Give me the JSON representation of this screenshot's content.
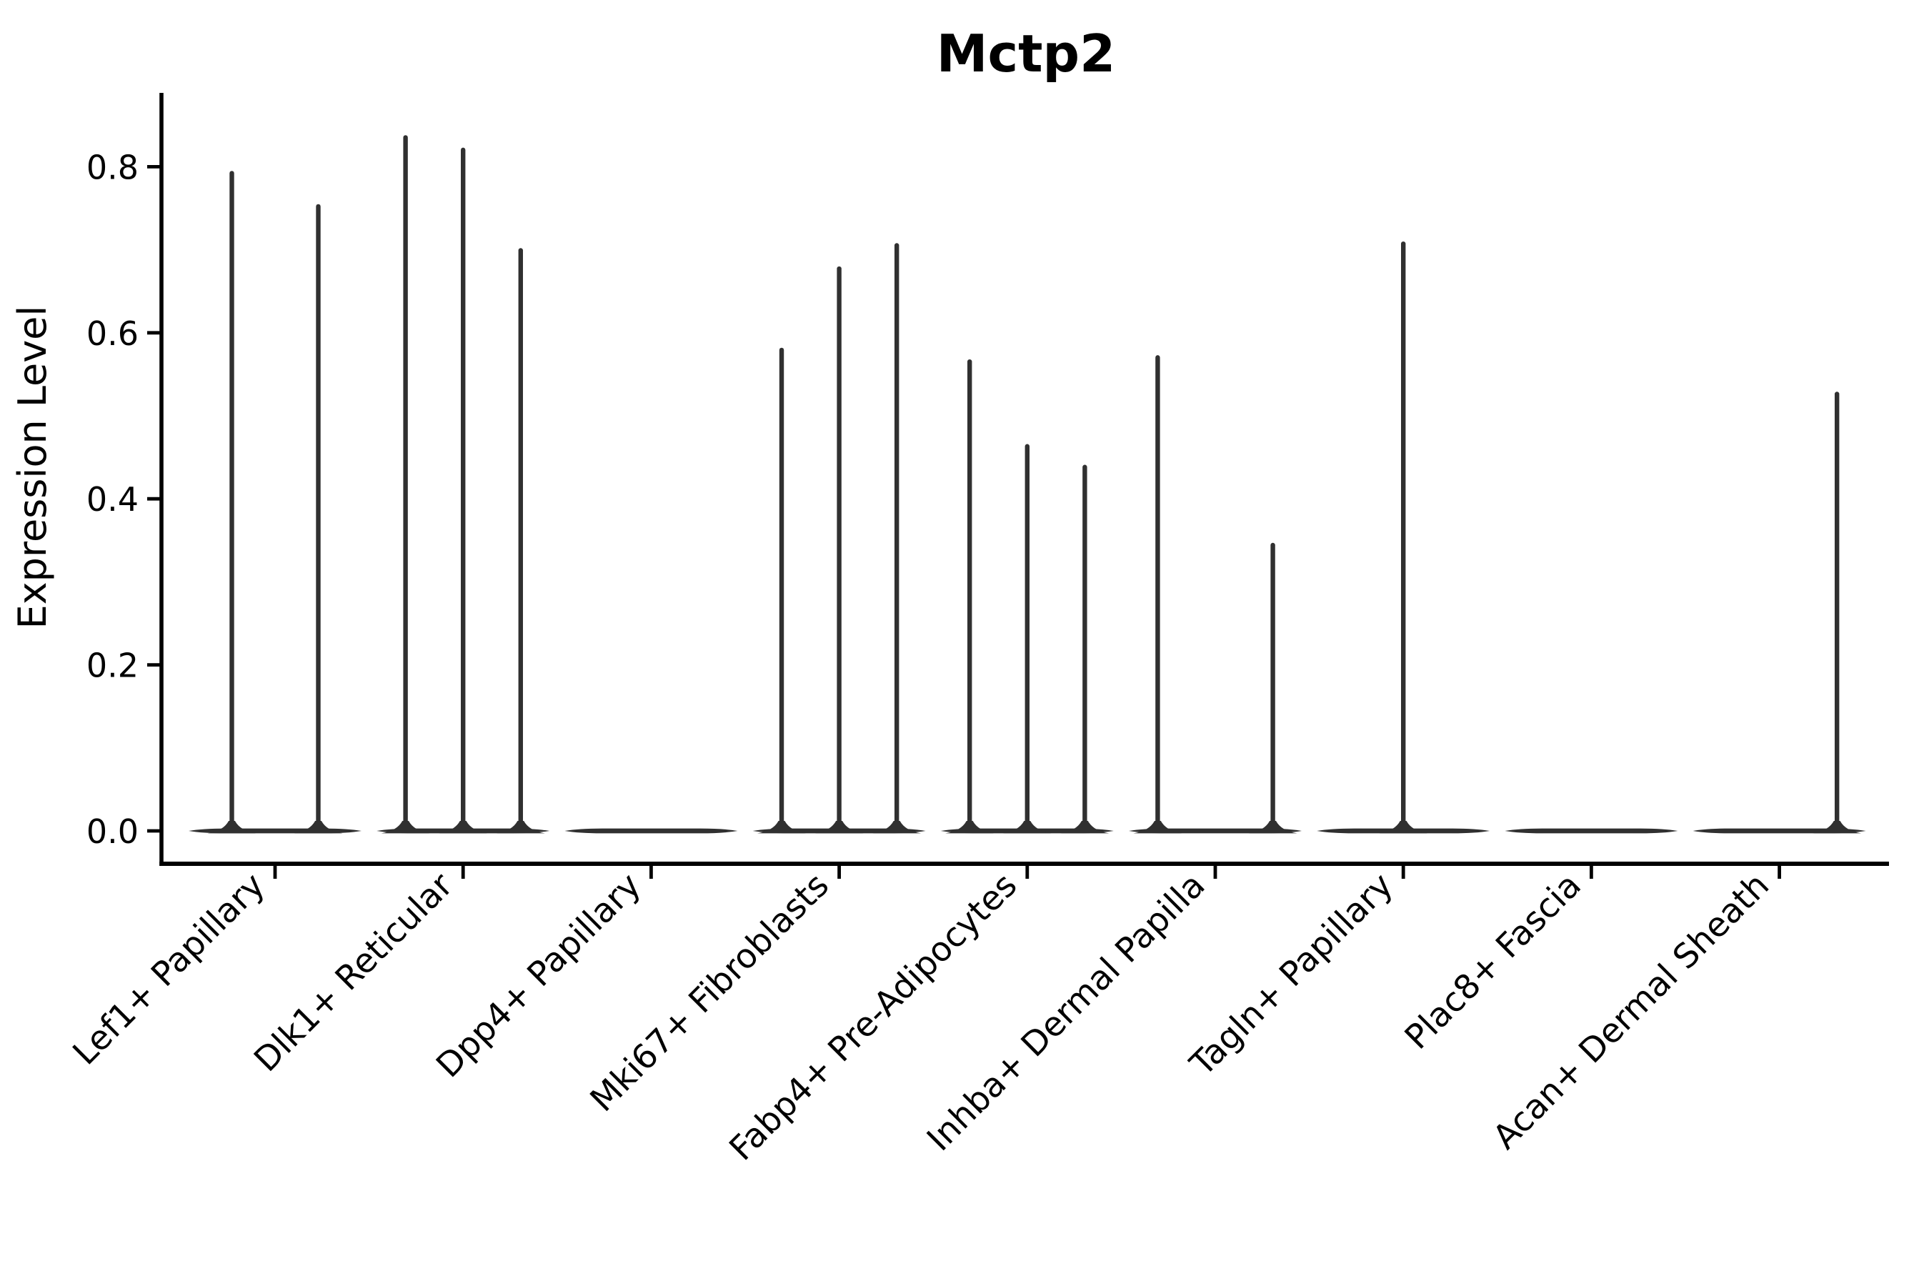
{
  "figure": {
    "title": "Mctp2",
    "ylabel": "Expression Level"
  },
  "chart_data": {
    "type": "violin",
    "title": "Mctp2",
    "xlabel": "",
    "ylabel": "Expression Level",
    "ylim": [
      0,
      0.89
    ],
    "yticks": [
      0.0,
      0.2,
      0.4,
      0.6,
      0.8
    ],
    "ytick_labels": [
      "0.0",
      "0.2",
      "0.4",
      "0.6",
      "0.8"
    ],
    "grid": false,
    "legend": false,
    "violin_color": "#303030",
    "axis_color": "#000000",
    "categories": [
      "Lef1+ Papillary",
      "Dlk1+ Reticular",
      "Dpp4+ Papillary",
      "Mki67+ Fibroblasts",
      "Fabp4+ Pre-Adipocytes",
      "Inhba+ Dermal Papilla",
      "Tagln+ Papillary",
      "Plac8+ Fascia",
      "Acan+ Dermal Sheath"
    ],
    "series": [
      {
        "category": "Lef1+ Papillary",
        "violins": [
          {
            "pos": 0.25,
            "max": 0.795
          },
          {
            "pos": 0.75,
            "max": 0.755
          }
        ]
      },
      {
        "category": "Dlk1+ Reticular",
        "violins": [
          {
            "pos": 0.167,
            "max": 0.838
          },
          {
            "pos": 0.5,
            "max": 0.823
          },
          {
            "pos": 0.833,
            "max": 0.702
          }
        ]
      },
      {
        "category": "Dpp4+ Papillary",
        "violins": [
          {
            "pos": 0.167,
            "max": 0
          },
          {
            "pos": 0.5,
            "max": 0
          },
          {
            "pos": 0.833,
            "max": 0
          }
        ]
      },
      {
        "category": "Mki67+ Fibroblasts",
        "violins": [
          {
            "pos": 0.167,
            "max": 0.582
          },
          {
            "pos": 0.5,
            "max": 0.68
          },
          {
            "pos": 0.833,
            "max": 0.708
          }
        ]
      },
      {
        "category": "Fabp4+ Pre-Adipocytes",
        "violins": [
          {
            "pos": 0.167,
            "max": 0.568
          },
          {
            "pos": 0.5,
            "max": 0.466
          },
          {
            "pos": 0.833,
            "max": 0.441
          }
        ]
      },
      {
        "category": "Inhba+ Dermal Papilla",
        "violins": [
          {
            "pos": 0.167,
            "max": 0.573
          },
          {
            "pos": 0.5,
            "max": 0
          },
          {
            "pos": 0.833,
            "max": 0.347
          }
        ]
      },
      {
        "category": "Tagln+ Papillary",
        "violins": [
          {
            "pos": 0.5,
            "max": 0.71
          }
        ]
      },
      {
        "category": "Plac8+ Fascia",
        "violins": [
          {
            "pos": 0.5,
            "max": 0
          }
        ]
      },
      {
        "category": "Acan+ Dermal Sheath",
        "violins": [
          {
            "pos": 0.167,
            "max": 0
          },
          {
            "pos": 0.5,
            "max": 0
          },
          {
            "pos": 0.833,
            "max": 0.529
          }
        ]
      }
    ]
  }
}
